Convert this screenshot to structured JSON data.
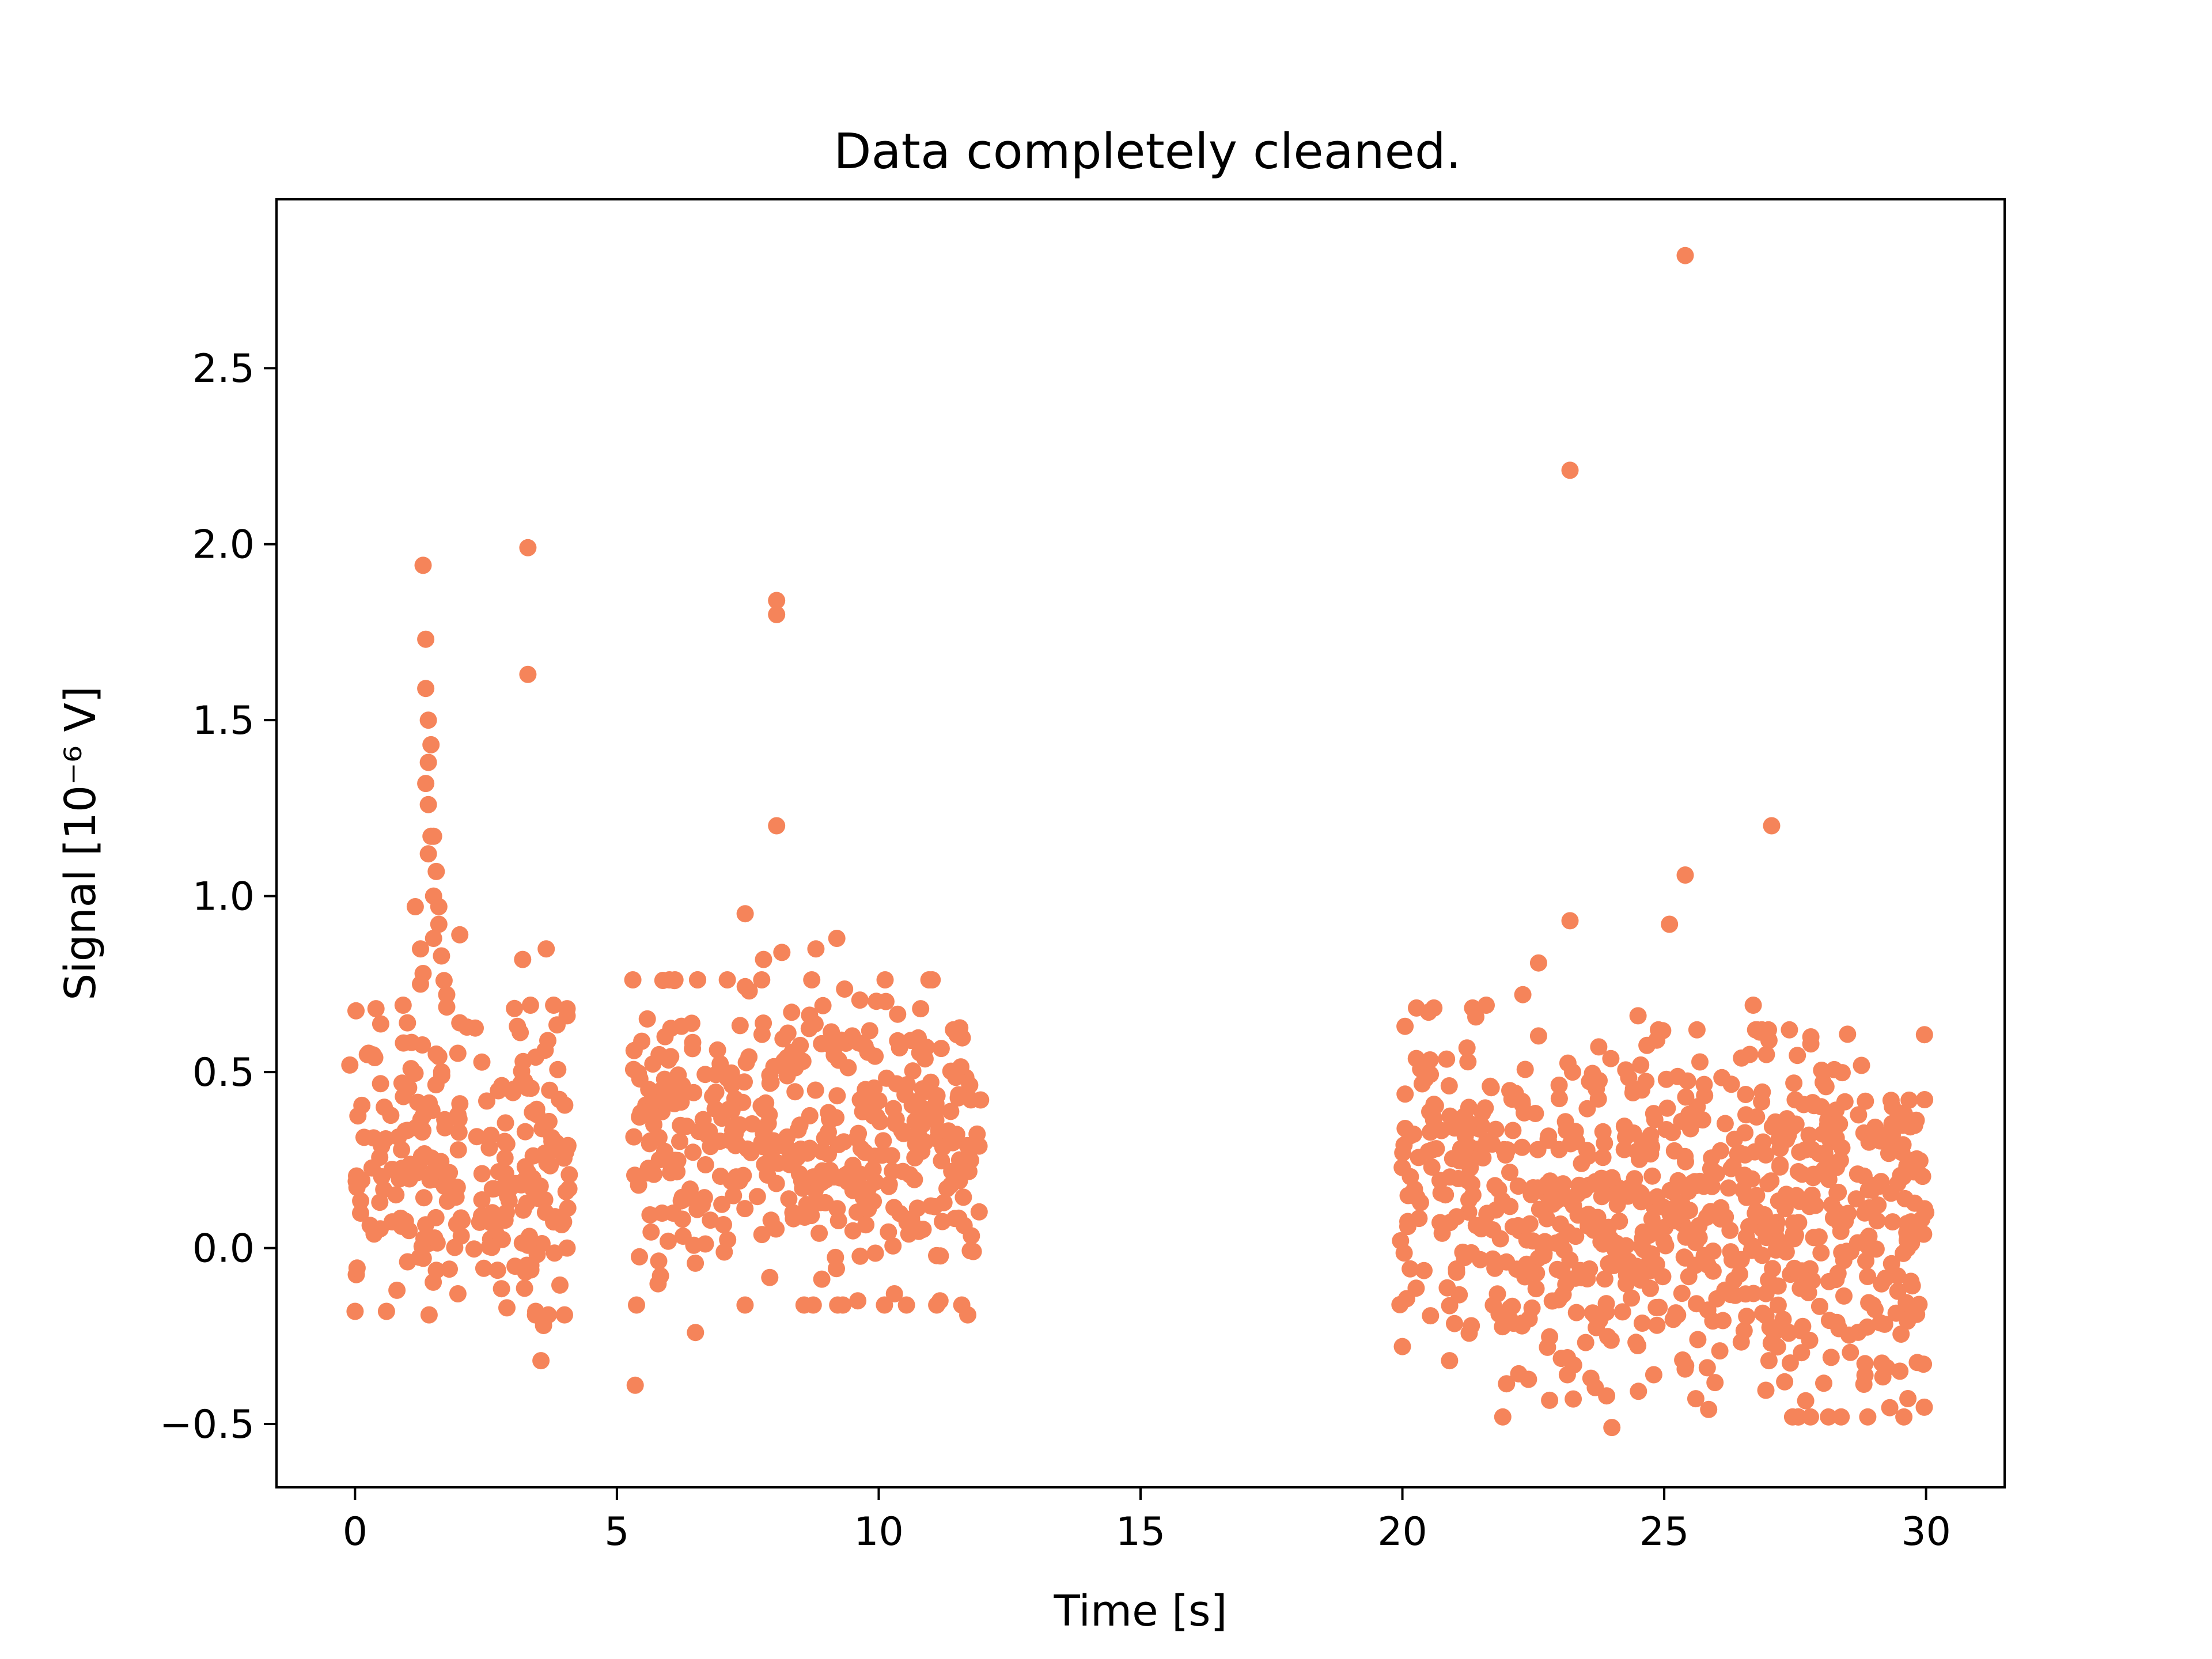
{
  "chart_data": {
    "type": "scatter",
    "title": "Data completely cleaned.",
    "xlabel": "Time [s]",
    "ylabel": "Signal [10⁻⁶ V]",
    "xlim": [
      -1.5,
      31.5
    ],
    "ylim": [
      -0.68,
      2.98
    ],
    "grid": false,
    "marker_color": "#F5845A",
    "xticks": [
      0,
      5,
      10,
      15,
      20,
      25,
      30
    ],
    "xtick_labels": [
      "0",
      "5",
      "10",
      "15",
      "20",
      "25",
      "30"
    ],
    "yticks": [
      -0.5,
      0.0,
      0.5,
      1.0,
      1.5,
      2.0,
      2.5
    ],
    "ytick_labels": [
      "−0.5",
      "0.0",
      "0.5",
      "1.0",
      "1.5",
      "2.0",
      "2.5"
    ],
    "series": [
      {
        "segments": [
          {
            "x_start": 0.0,
            "x_end": 4.1,
            "center": 0.25,
            "spread": 0.4,
            "count": 230
          },
          {
            "x_start": 5.3,
            "x_end": 11.95,
            "center": 0.3,
            "spread": 0.42,
            "count": 420
          },
          {
            "x_start": 19.95,
            "x_end": 21.7,
            "center": 0.22,
            "spread": 0.42,
            "count": 110
          },
          {
            "x_start": 21.7,
            "x_end": 30.0,
            "center": 0.07,
            "spread": 0.5,
            "count": 640
          }
        ],
        "outliers": [
          [
            -0.1,
            0.52
          ],
          [
            0.0,
            -0.18
          ],
          [
            0.4,
            0.68
          ],
          [
            0.6,
            -0.18
          ],
          [
            0.8,
            -0.12
          ],
          [
            1.0,
            0.64
          ],
          [
            1.15,
            0.97
          ],
          [
            1.25,
            0.85
          ],
          [
            1.3,
            1.94
          ],
          [
            1.35,
            1.73
          ],
          [
            1.35,
            1.59
          ],
          [
            1.4,
            1.5
          ],
          [
            1.45,
            1.43
          ],
          [
            1.4,
            1.38
          ],
          [
            1.35,
            1.32
          ],
          [
            1.4,
            1.26
          ],
          [
            1.45,
            1.17
          ],
          [
            1.5,
            1.17
          ],
          [
            1.4,
            1.12
          ],
          [
            1.55,
            1.07
          ],
          [
            1.5,
            1.0
          ],
          [
            1.6,
            0.97
          ],
          [
            1.6,
            0.92
          ],
          [
            1.5,
            0.88
          ],
          [
            1.65,
            0.83
          ],
          [
            1.7,
            0.76
          ],
          [
            1.75,
            0.72
          ],
          [
            1.3,
            0.78
          ],
          [
            1.25,
            0.75
          ],
          [
            2.0,
            0.89
          ],
          [
            2.0,
            0.64
          ],
          [
            1.8,
            -0.06
          ],
          [
            3.3,
            1.99
          ],
          [
            3.3,
            1.63
          ],
          [
            3.2,
            0.82
          ],
          [
            3.1,
            0.63
          ],
          [
            3.35,
            0.69
          ],
          [
            3.65,
            0.85
          ],
          [
            4.05,
            0.68
          ],
          [
            4.05,
            0.66
          ],
          [
            3.6,
            -0.22
          ],
          [
            3.55,
            -0.32
          ],
          [
            3.45,
            -0.18
          ],
          [
            2.9,
            -0.17
          ],
          [
            4.05,
            0.0
          ],
          [
            5.35,
            -0.39
          ],
          [
            6.5,
            -0.24
          ],
          [
            7.45,
            0.95
          ],
          [
            8.05,
            1.84
          ],
          [
            8.05,
            1.8
          ],
          [
            8.05,
            1.2
          ],
          [
            8.15,
            0.84
          ],
          [
            9.2,
            0.88
          ],
          [
            8.8,
            0.85
          ],
          [
            7.8,
            0.82
          ],
          [
            11.7,
            -0.19
          ],
          [
            9.6,
            -0.15
          ],
          [
            10.8,
            0.68
          ],
          [
            10.3,
            -0.13
          ],
          [
            6.1,
            0.76
          ],
          [
            20.0,
            -0.28
          ],
          [
            20.9,
            -0.32
          ],
          [
            20.05,
            0.63
          ],
          [
            20.5,
            0.67
          ],
          [
            21.6,
            0.69
          ],
          [
            22.3,
            0.72
          ],
          [
            22.6,
            0.81
          ],
          [
            23.2,
            2.21
          ],
          [
            23.2,
            0.93
          ],
          [
            23.25,
            0.5
          ],
          [
            25.4,
            2.82
          ],
          [
            25.4,
            1.06
          ],
          [
            25.1,
            0.92
          ],
          [
            27.05,
            1.2
          ],
          [
            26.7,
            0.69
          ],
          [
            27.0,
            0.59
          ],
          [
            26.95,
            0.55
          ],
          [
            24.5,
            0.66
          ],
          [
            24.55,
            0.52
          ],
          [
            27.8,
            0.6
          ],
          [
            27.8,
            0.58
          ],
          [
            24.0,
            -0.51
          ],
          [
            23.9,
            -0.42
          ],
          [
            23.6,
            -0.37
          ],
          [
            23.15,
            -0.36
          ],
          [
            24.8,
            -0.36
          ],
          [
            27.0,
            -0.32
          ],
          [
            29.25,
            -0.34
          ],
          [
            29.5,
            -0.35
          ],
          [
            29.95,
            -0.33
          ]
        ]
      }
    ]
  }
}
